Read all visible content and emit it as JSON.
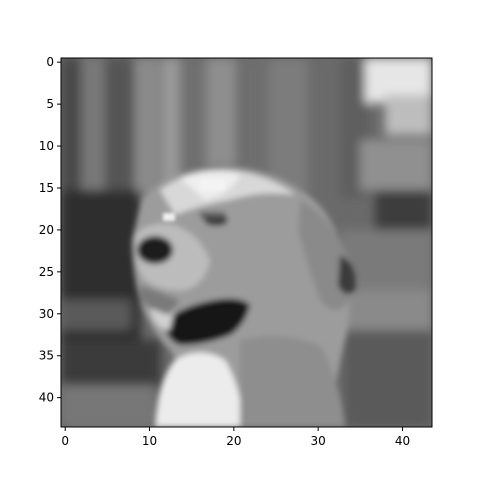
{
  "chart_data": {
    "type": "heatmap",
    "colormap": "gray",
    "grid": false,
    "xlim": [
      -0.5,
      43.5
    ],
    "ylim": [
      43.5,
      -0.5
    ],
    "x_ticks": [
      "0",
      "10",
      "20",
      "30",
      "40"
    ],
    "y_ticks": [
      "0",
      "5",
      "10",
      "15",
      "20",
      "25",
      "30",
      "35",
      "40"
    ],
    "image_size": [
      44,
      44
    ],
    "content": "low-resolution grayscale photo of a light-colored dog's head in profile facing left, mouth open, blurred background"
  }
}
